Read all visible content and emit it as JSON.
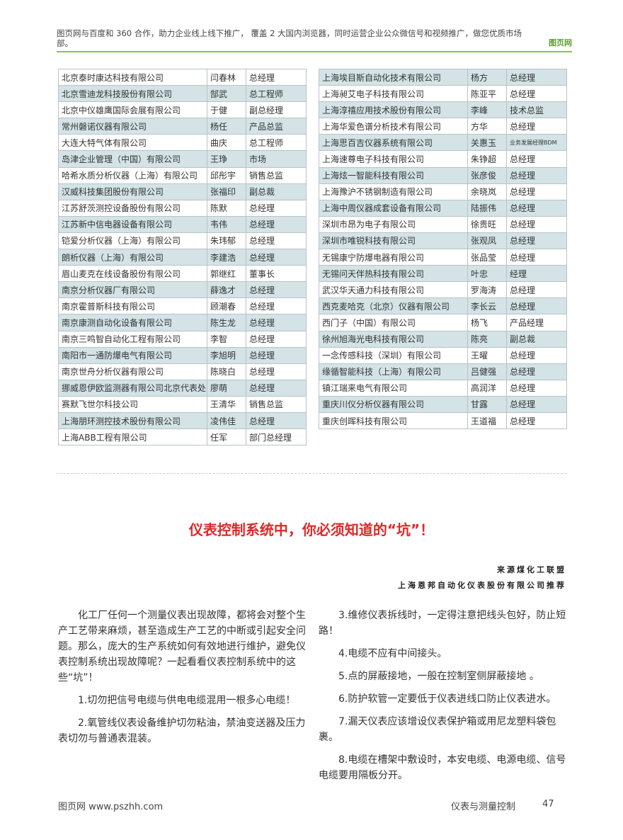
{
  "header": {
    "banner": "图页网与百度和 360 合作，助力企业线上线下推广， 覆盖 2 大国内浏览器，同时运营企业公众微信号和视频推广，做您优质市场部。",
    "logo": "图页网",
    "accent": "#8cc63f"
  },
  "left_table": [
    [
      "北京泰时康达科技有限公司",
      "闫春林",
      "总经理"
    ],
    [
      "北京雪迪龙科技股份有限公司",
      "郜武",
      "总工程师"
    ],
    [
      "北京中仪雄鹰国际会展有限公司",
      "于健",
      "副总经理"
    ],
    [
      "常州磐诺仪器有限公司",
      "杨任",
      "产品总监"
    ],
    [
      "大连大特气体有限公司",
      "曲庆",
      "总工程师"
    ],
    [
      "岛津企业管理（中国）有限公司",
      "王琤",
      "市场"
    ],
    [
      "哈希水质分析仪器（上海）有限公司",
      "邱彤宇",
      "销售总监"
    ],
    [
      "汉威科技集团股份有限公司",
      "张福印",
      "副总裁"
    ],
    [
      "江苏舒茨测控设备股份有限公司",
      "陈默",
      "总经理"
    ],
    [
      "江苏新中信电器设备有限公司",
      "韦伟",
      "总经理"
    ],
    [
      "铠爱分析仪器（上海）有限公司",
      "朱玮郁",
      "总经理"
    ],
    [
      "朗析仪器（上海）有限公司",
      "李建浩",
      "总经理"
    ],
    [
      "眉山麦克在线设备股份有限公司",
      "郭继红",
      "董事长"
    ],
    [
      "南京分析仪器厂有限公司",
      "薛逸才",
      "总经理"
    ],
    [
      "南京霍普斯科技有限公司",
      "顾潮春",
      "总经理"
    ],
    [
      "南京康测自动化设备有限公司",
      "陈生龙",
      "总经理"
    ],
    [
      "南京三鸣智自动化工程有限公司",
      "李智",
      "总经理"
    ],
    [
      "南阳市一通防爆电气有限公司",
      "李旭明",
      "总经理"
    ],
    [
      "南京世舟分析仪器有限公司",
      "陈晓白",
      "总经理"
    ],
    [
      "挪威恩伊欧监测器有限公司北京代表处",
      "廖萌",
      "总经理"
    ],
    [
      "赛默飞世尔科技公司",
      "王清华",
      "销售总监"
    ],
    [
      "上海朋环测控技术股份有限公司",
      "凌伟佳",
      "总经理"
    ],
    [
      "上海ABB工程有限公司",
      "任军",
      "部门总经理"
    ]
  ],
  "right_table": [
    [
      "上海埃目斯自动化技术有限公司",
      "杨方",
      "总经理"
    ],
    [
      "上海昶艾电子科技有限公司",
      "陈亚平",
      "总经理"
    ],
    [
      "上海淳禧应用技术股份有限公司",
      "李峰",
      "技术总监"
    ],
    [
      "上海华爱色谱分析技术有限公司",
      "方华",
      "总经理"
    ],
    [
      "上海思百吉仪器系统有限公司",
      "关惠玉",
      "业务发展经理BDM"
    ],
    [
      "上海速尊电子科技有限公司",
      "朱铮超",
      "总经理"
    ],
    [
      "上海炫一智能科技有限公司",
      "张彦俊",
      "总经理"
    ],
    [
      "上海豫沪不锈钢制造有限公司",
      "余晓岚",
      "总经理"
    ],
    [
      "上海中周仪器成套设备有限公司",
      "陆振伟",
      "总经理"
    ],
    [
      "深圳市昂为电子有限公司",
      "徐贵旺",
      "总经理"
    ],
    [
      "深圳市唯锐科技有限公司",
      "张观凤",
      "总经理"
    ],
    [
      "无锡康宁防爆电器有限公司",
      "张品莹",
      "总经理"
    ],
    [
      "无锡问天伴热科技有限公司",
      "叶忠",
      "经理"
    ],
    [
      "武汉华天通力科技有限公司",
      "罗海涛",
      "总经理"
    ],
    [
      "西克麦哈克（北京）仪器有限公司",
      "李长云",
      "总经理"
    ],
    [
      "西门子（中国）有限公司",
      "杨飞",
      "产品经理"
    ],
    [
      "徐州旭海光电科技有限公司",
      "陈亮",
      "副总裁"
    ],
    [
      "一念传感科技（深圳）有限公司",
      "王曜",
      "总经理"
    ],
    [
      "缘循智能科技（上海）有限公司",
      "吕健强",
      "总经理"
    ],
    [
      "镇江瑞来电气有限公司",
      "高润洋",
      "总经理"
    ],
    [
      "重庆川仪分析仪器有限公司",
      "甘露",
      "总经理"
    ],
    [
      "重庆创晖科技有限公司",
      "王道福",
      "总经理"
    ]
  ],
  "article": {
    "title": "仪表控制系统中，你必须知道的“坑”！",
    "source1": "来源煤化工联盟",
    "source2": "上海恩邦自动化仪表股份有限公司推荐",
    "title_color": "#e02727",
    "paragraphs": [
      "化工厂任何一个测量仪表出现故障，都将会对整个生产工艺带来麻烦，甚至造成生产工艺的中断或引起安全问题。那么，庞大的生产系统如何有效地进行维护，避免仪表控制系统出现故障呢？一起看看仪表控制系统中的这些“坑”！",
      "1.切勿把信号电缆与供电电缆混用一根多心电缆！",
      "2.氧管线仪表设备维护切勿粘油，禁油变送器及压力表切勿与普通表混装。",
      "3.维修仪表拆线时，一定得注意把线头包好，防止短路！",
      "4.电缆不应有中间接头。",
      "5.点的屏蔽接地，一般在控制室侧屏蔽接地 。",
      "6.防护软管一定要低于仪表进线口防止仪表进水。",
      "7.漏天仪表应该增设仪表保护箱或用尼龙塑料袋包裹。",
      "8.电缆在槽架中敷设时，本安电缆、电源电缆、信号电缆要用隔板分开。"
    ]
  },
  "footer": {
    "site": "图页网  www.pszhh.com",
    "magazine": "仪表与测量控制",
    "page": "47"
  }
}
